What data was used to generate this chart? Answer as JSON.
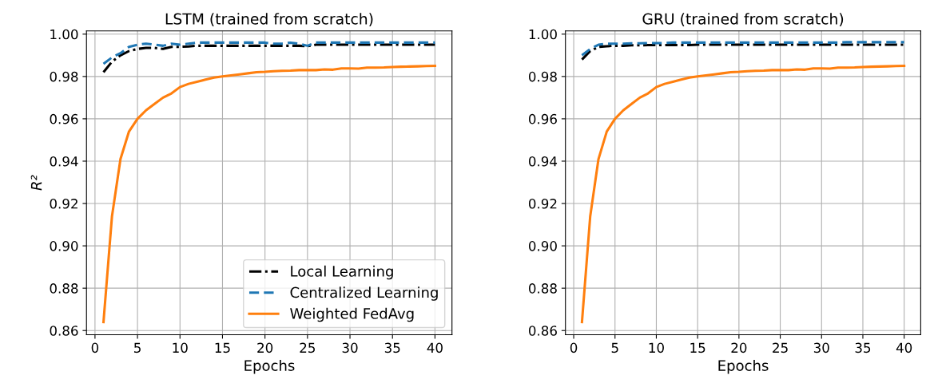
{
  "chart_data": [
    {
      "type": "line",
      "title": "LSTM (trained from scratch)",
      "xlabel": "Epochs",
      "ylabel": "R²",
      "x": [
        1,
        2,
        3,
        4,
        5,
        6,
        7,
        8,
        9,
        10,
        11,
        12,
        13,
        14,
        15,
        16,
        17,
        18,
        19,
        20,
        21,
        22,
        23,
        24,
        25,
        26,
        27,
        28,
        29,
        30,
        31,
        32,
        33,
        34,
        35,
        36,
        37,
        38,
        39,
        40
      ],
      "series": [
        {
          "name": "Local Learning",
          "color": "#000000",
          "line_style": "dashdot",
          "values": [
            0.982,
            0.987,
            0.99,
            0.992,
            0.993,
            0.9935,
            0.9935,
            0.993,
            0.994,
            0.994,
            0.9942,
            0.9945,
            0.9945,
            0.9945,
            0.9945,
            0.9945,
            0.9945,
            0.9945,
            0.9945,
            0.9945,
            0.9945,
            0.9945,
            0.9945,
            0.9945,
            0.9943,
            0.995,
            0.995,
            0.995,
            0.995,
            0.995,
            0.995,
            0.995,
            0.995,
            0.995,
            0.995,
            0.995,
            0.995,
            0.995,
            0.995,
            0.995
          ]
        },
        {
          "name": "Centralized Learning",
          "color": "#1f77b4",
          "line_style": "dashed",
          "values": [
            0.986,
            0.989,
            0.991,
            0.994,
            0.995,
            0.9955,
            0.995,
            0.9945,
            0.9955,
            0.995,
            0.9955,
            0.996,
            0.996,
            0.996,
            0.996,
            0.996,
            0.996,
            0.996,
            0.996,
            0.996,
            0.9955,
            0.9955,
            0.996,
            0.9955,
            0.9945,
            0.996,
            0.996,
            0.996,
            0.996,
            0.996,
            0.996,
            0.996,
            0.996,
            0.996,
            0.996,
            0.996,
            0.996,
            0.996,
            0.996,
            0.996
          ]
        },
        {
          "name": "Weighted FedAvg",
          "color": "#ff7f0e",
          "line_style": "solid",
          "values": [
            0.864,
            0.914,
            0.941,
            0.954,
            0.96,
            0.964,
            0.967,
            0.97,
            0.972,
            0.975,
            0.9765,
            0.9775,
            0.9785,
            0.9795,
            0.98,
            0.9805,
            0.981,
            0.9815,
            0.982,
            0.9822,
            0.9825,
            0.9827,
            0.9828,
            0.983,
            0.983,
            0.983,
            0.9833,
            0.9832,
            0.9838,
            0.9838,
            0.9837,
            0.9842,
            0.9842,
            0.9843,
            0.9845,
            0.9846,
            0.9847,
            0.9848,
            0.9849,
            0.985
          ]
        }
      ],
      "xlim": [
        -1,
        42
      ],
      "xticks": [
        0,
        5,
        10,
        15,
        20,
        25,
        30,
        35,
        40
      ],
      "ylim": [
        0.858,
        1.0015
      ],
      "yticks": [
        {
          "value": 0.86,
          "label": "0.86"
        },
        {
          "value": 0.88,
          "label": "0.88"
        },
        {
          "value": 0.9,
          "label": "0.90"
        },
        {
          "value": 0.92,
          "label": "0.92"
        },
        {
          "value": 0.94,
          "label": "0.94"
        },
        {
          "value": 0.96,
          "label": "0.96"
        },
        {
          "value": 0.98,
          "label": "0.98"
        },
        {
          "value": 1.0,
          "label": "1.00"
        }
      ],
      "grid": true,
      "legend": "bottom right"
    },
    {
      "type": "line",
      "title": "GRU (trained from scratch)",
      "xlabel": "Epochs",
      "x": [
        1,
        2,
        3,
        4,
        5,
        6,
        7,
        8,
        9,
        10,
        11,
        12,
        13,
        14,
        15,
        16,
        17,
        18,
        19,
        20,
        21,
        22,
        23,
        24,
        25,
        26,
        27,
        28,
        29,
        30,
        31,
        32,
        33,
        34,
        35,
        36,
        37,
        38,
        39,
        40
      ],
      "series": [
        {
          "color": "#000000",
          "line_style": "dashdot",
          "values": [
            0.988,
            0.992,
            0.994,
            0.9943,
            0.9945,
            0.9945,
            0.9947,
            0.9947,
            0.9948,
            0.9948,
            0.9948,
            0.9948,
            0.9948,
            0.9948,
            0.995,
            0.995,
            0.995,
            0.995,
            0.995,
            0.995,
            0.995,
            0.995,
            0.995,
            0.995,
            0.995,
            0.995,
            0.995,
            0.995,
            0.995,
            0.995,
            0.995,
            0.995,
            0.995,
            0.995,
            0.995,
            0.995,
            0.995,
            0.995,
            0.995,
            0.995
          ]
        },
        {
          "color": "#1f77b4",
          "line_style": "dashed",
          "values": [
            0.99,
            0.993,
            0.995,
            0.9955,
            0.9955,
            0.9955,
            0.9957,
            0.9957,
            0.9958,
            0.9958,
            0.9958,
            0.996,
            0.996,
            0.996,
            0.996,
            0.996,
            0.996,
            0.996,
            0.996,
            0.996,
            0.996,
            0.996,
            0.996,
            0.996,
            0.996,
            0.996,
            0.996,
            0.996,
            0.996,
            0.996,
            0.996,
            0.996,
            0.9962,
            0.9962,
            0.9962,
            0.9962,
            0.9962,
            0.9962,
            0.9962,
            0.9962
          ]
        },
        {
          "color": "#ff7f0e",
          "line_style": "solid",
          "values": [
            0.864,
            0.914,
            0.941,
            0.954,
            0.96,
            0.964,
            0.967,
            0.97,
            0.972,
            0.975,
            0.9765,
            0.9775,
            0.9785,
            0.9795,
            0.98,
            0.9805,
            0.981,
            0.9815,
            0.982,
            0.9822,
            0.9825,
            0.9827,
            0.9828,
            0.983,
            0.983,
            0.983,
            0.9833,
            0.9832,
            0.9838,
            0.9838,
            0.9837,
            0.9842,
            0.9842,
            0.9843,
            0.9845,
            0.9846,
            0.9847,
            0.9848,
            0.9849,
            0.985
          ]
        }
      ],
      "xlim": [
        -1,
        42
      ],
      "xticks": [
        0,
        5,
        10,
        15,
        20,
        25,
        30,
        35,
        40
      ],
      "ylim": [
        0.858,
        1.0015
      ],
      "yticks": [
        {
          "value": 0.86,
          "label": "0.86"
        },
        {
          "value": 0.88,
          "label": "0.88"
        },
        {
          "value": 0.9,
          "label": "0.90"
        },
        {
          "value": 0.92,
          "label": "0.92"
        },
        {
          "value": 0.94,
          "label": "0.94"
        },
        {
          "value": 0.96,
          "label": "0.96"
        },
        {
          "value": 0.98,
          "label": "0.98"
        },
        {
          "value": 1.0,
          "label": "1.00"
        }
      ],
      "grid": true
    }
  ]
}
